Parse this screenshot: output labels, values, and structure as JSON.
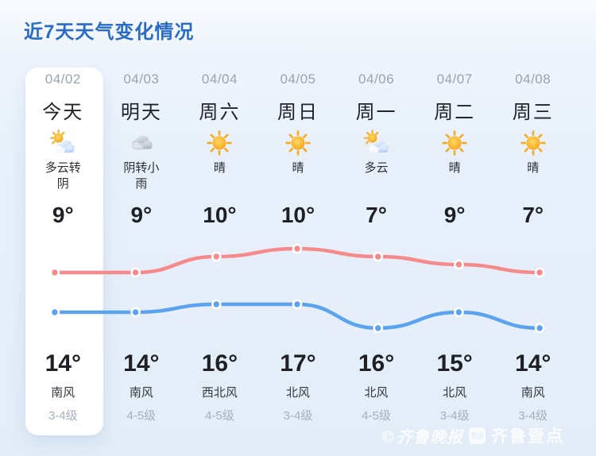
{
  "title": "近7天天气变化情况",
  "days": [
    {
      "date": "04/02",
      "label": "今天",
      "icon": "partly-cloudy",
      "condition": "多云转阴",
      "temp_top": "9°",
      "temp_bottom": "14°",
      "wind": "南风",
      "wind_level": "3-4级",
      "highlight": true
    },
    {
      "date": "04/03",
      "label": "明天",
      "icon": "cloudy",
      "condition": "阴转小雨",
      "temp_top": "9°",
      "temp_bottom": "14°",
      "wind": "南风",
      "wind_level": "4-5级",
      "highlight": false
    },
    {
      "date": "04/04",
      "label": "周六",
      "icon": "sunny",
      "condition": "晴",
      "temp_top": "10°",
      "temp_bottom": "16°",
      "wind": "西北风",
      "wind_level": "4-5级",
      "highlight": false
    },
    {
      "date": "04/05",
      "label": "周日",
      "icon": "sunny",
      "condition": "晴",
      "temp_top": "10°",
      "temp_bottom": "17°",
      "wind": "北风",
      "wind_level": "3-4级",
      "highlight": false
    },
    {
      "date": "04/06",
      "label": "周一",
      "icon": "partly-cloudy",
      "condition": "多云",
      "temp_top": "7°",
      "temp_bottom": "16°",
      "wind": "北风",
      "wind_level": "4-5级",
      "highlight": false
    },
    {
      "date": "04/07",
      "label": "周二",
      "icon": "sunny",
      "condition": "晴",
      "temp_top": "9°",
      "temp_bottom": "15°",
      "wind": "北风",
      "wind_level": "3-4级",
      "highlight": false
    },
    {
      "date": "04/08",
      "label": "周三",
      "icon": "sunny",
      "condition": "晴",
      "temp_top": "7°",
      "temp_bottom": "14°",
      "wind": "南风",
      "wind_level": "3-4级",
      "highlight": false
    }
  ],
  "chart_data": {
    "type": "line",
    "categories": [
      "04/02",
      "04/03",
      "04/04",
      "04/05",
      "04/06",
      "04/07",
      "04/08"
    ],
    "series": [
      {
        "name": "high",
        "values": [
          14,
          14,
          16,
          17,
          16,
          15,
          14
        ],
        "color": "#f68a8a"
      },
      {
        "name": "low",
        "values": [
          9,
          9,
          10,
          10,
          7,
          9,
          7
        ],
        "color": "#5ba3ee"
      }
    ],
    "ylim": [
      7,
      17
    ],
    "grid": false,
    "legend": false,
    "title": "近7天天气变化情况"
  },
  "watermark": {
    "copyright": "©齐鲁晚报",
    "badge": "壹点",
    "brand": "齐鲁壹点"
  },
  "colors": {
    "title": "#2a6cc4",
    "background_top": "#f8fbfe",
    "background_bottom": "#e3edf8",
    "card": "#ffffff",
    "high_line": "#f68a8a",
    "low_line": "#5ba3ee",
    "date_text": "#9aa3b0",
    "wind_level_text": "#a6aebc"
  }
}
